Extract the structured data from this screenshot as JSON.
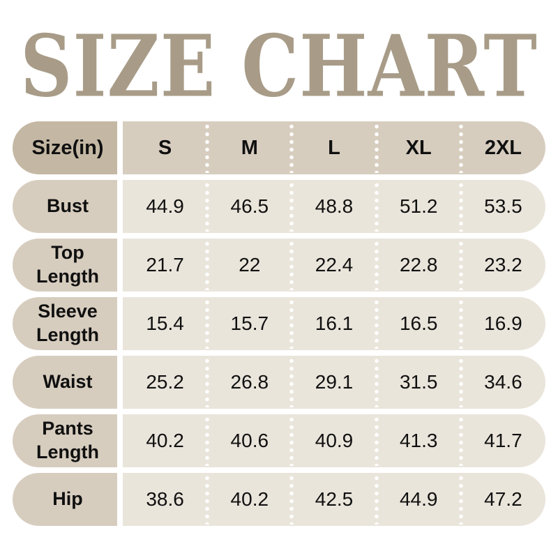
{
  "title": {
    "text": "SIZE CHART"
  },
  "colors": {
    "title_color": "#a89c88",
    "header_label_bg": "#c4b8a4",
    "header_row_bg": "#d7cdbf",
    "row_label_bg": "#d7cdbf",
    "cell_bg": "#eae5db",
    "text": "#101010",
    "separator_dots": "#ffffff"
  },
  "table": {
    "unit_header": "Size(in)",
    "columns": [
      "S",
      "M",
      "L",
      "XL",
      "2XL"
    ],
    "rows": [
      {
        "label": "Bust",
        "values": [
          "44.9",
          "46.5",
          "48.8",
          "51.2",
          "53.5"
        ]
      },
      {
        "label": "Top Length",
        "values": [
          "21.7",
          "22",
          "22.4",
          "22.8",
          "23.2"
        ]
      },
      {
        "label": "Sleeve Length",
        "values": [
          "15.4",
          "15.7",
          "16.1",
          "16.5",
          "16.9"
        ]
      },
      {
        "label": "Waist",
        "values": [
          "25.2",
          "26.8",
          "29.1",
          "31.5",
          "34.6"
        ]
      },
      {
        "label": "Pants Length",
        "values": [
          "40.2",
          "40.6",
          "40.9",
          "41.3",
          "41.7"
        ]
      },
      {
        "label": "Hip",
        "values": [
          "38.6",
          "40.2",
          "42.5",
          "44.9",
          "47.2"
        ]
      }
    ]
  },
  "chart_data": {
    "type": "table",
    "title": "SIZE CHART",
    "unit": "inches",
    "columns": [
      "S",
      "M",
      "L",
      "XL",
      "2XL"
    ],
    "rows": [
      {
        "measurement": "Bust",
        "values": [
          44.9,
          46.5,
          48.8,
          51.2,
          53.5
        ]
      },
      {
        "measurement": "Top Length",
        "values": [
          21.7,
          22,
          22.4,
          22.8,
          23.2
        ]
      },
      {
        "measurement": "Sleeve Length",
        "values": [
          15.4,
          15.7,
          16.1,
          16.5,
          16.9
        ]
      },
      {
        "measurement": "Waist",
        "values": [
          25.2,
          26.8,
          29.1,
          31.5,
          34.6
        ]
      },
      {
        "measurement": "Pants Length",
        "values": [
          40.2,
          40.6,
          40.9,
          41.3,
          41.7
        ]
      },
      {
        "measurement": "Hip",
        "values": [
          38.6,
          40.2,
          42.5,
          44.9,
          47.2
        ]
      }
    ]
  }
}
